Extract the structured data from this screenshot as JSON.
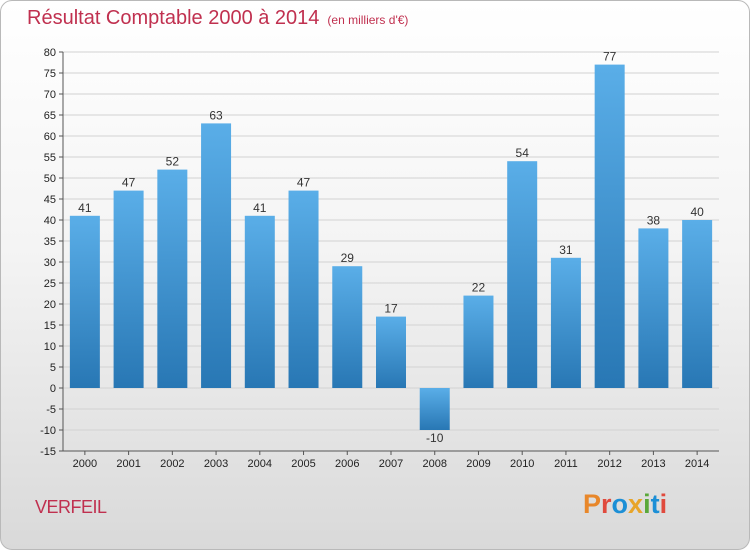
{
  "header": {
    "title": "Résultat Comptable 2000 à 2014",
    "subtitle": "(en milliers d'€)"
  },
  "footer": {
    "commune": "VERFEIL",
    "logo_text": "Proxiti"
  },
  "colors": {
    "title": "#c0304f",
    "bar_top": "#5aaee8",
    "bar_bottom": "#2877b4",
    "grid": "#d2d2d2",
    "logo_letters": [
      "#e8872a",
      "#e04a3d",
      "#1c8fd6",
      "#e8a52a",
      "#5aa83a",
      "#1c8fd6",
      "#e04a3d"
    ]
  },
  "chart_data": {
    "type": "bar",
    "title": "Résultat Comptable 2000 à 2014",
    "subtitle": "(en milliers d'€)",
    "xlabel": "",
    "ylabel": "",
    "categories": [
      "2000",
      "2001",
      "2002",
      "2003",
      "2004",
      "2005",
      "2006",
      "2007",
      "2008",
      "2009",
      "2010",
      "2011",
      "2012",
      "2013",
      "2014"
    ],
    "values": [
      41,
      47,
      52,
      63,
      41,
      47,
      29,
      17,
      -10,
      22,
      54,
      31,
      77,
      38,
      40
    ],
    "data_labels": [
      "41",
      "47",
      "52",
      "63",
      "41",
      "47",
      "29",
      "17",
      "-10",
      "22",
      "54",
      "31",
      "77",
      "38",
      "40"
    ],
    "ylim": [
      -15,
      80
    ],
    "yticks": [
      -15,
      -10,
      -5,
      0,
      5,
      10,
      15,
      20,
      25,
      30,
      35,
      40,
      45,
      50,
      55,
      60,
      65,
      70,
      75,
      80
    ],
    "grid": true,
    "legend": "none"
  }
}
